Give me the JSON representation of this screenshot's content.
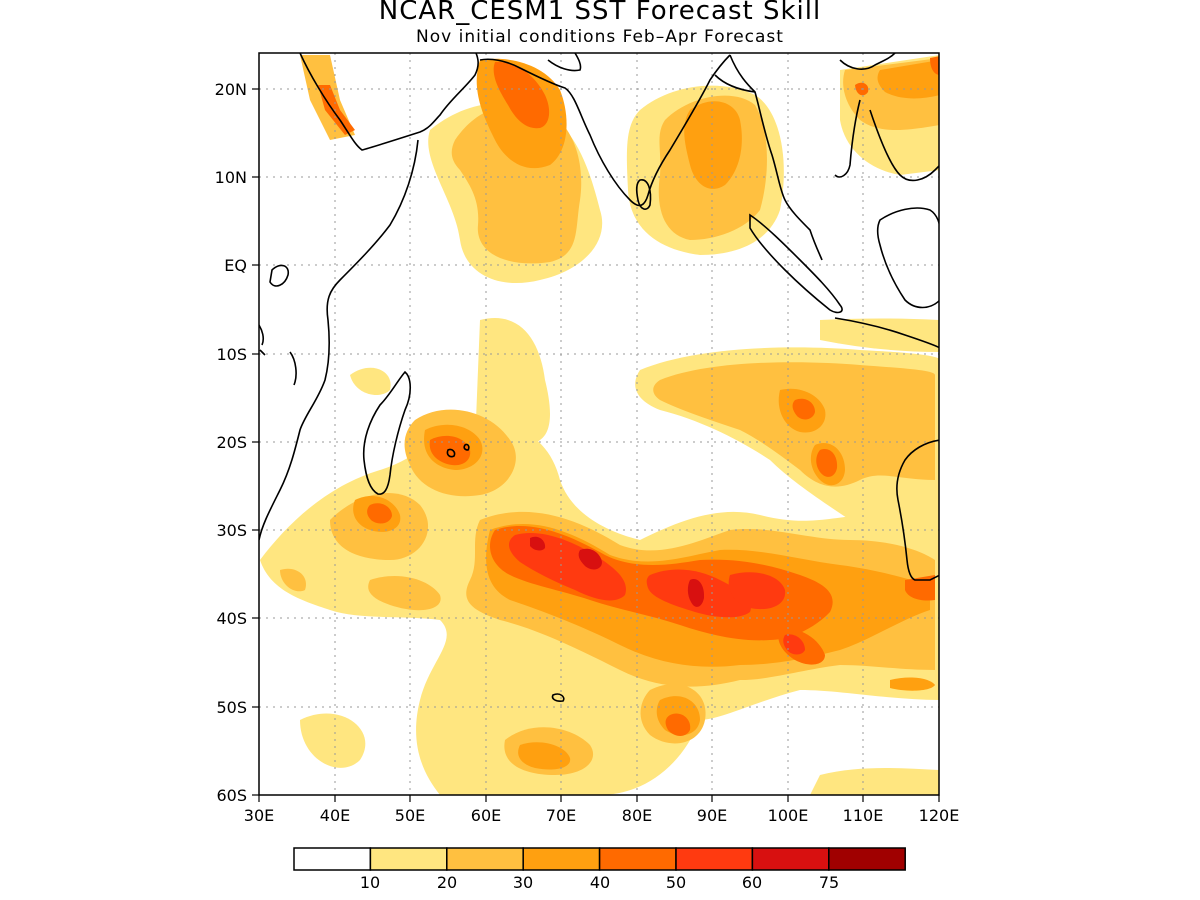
{
  "title": "NCAR_CESM1  SST Forecast Skill",
  "subtitle": "Nov initial conditions   Feb–Apr Forecast",
  "map": {
    "lon_range": [
      30,
      120
    ],
    "lat_range": [
      -60,
      24
    ],
    "lon_ticks": [
      "30E",
      "40E",
      "50E",
      "60E",
      "70E",
      "80E",
      "90E",
      "100E",
      "110E",
      "120E"
    ],
    "lat_ticks": [
      "20N",
      "10N",
      "EQ",
      "10S",
      "20S",
      "30S",
      "40S",
      "50S",
      "60S"
    ],
    "grid": "dotted"
  },
  "legend": {
    "labels": [
      "10",
      "20",
      "30",
      "40",
      "50",
      "60",
      "75"
    ],
    "colors": [
      "#ffffff",
      "#ffe680",
      "#ffc040",
      "#ffa010",
      "#ff6a00",
      "#ff3a10",
      "#d81010",
      "#a00000"
    ]
  }
}
